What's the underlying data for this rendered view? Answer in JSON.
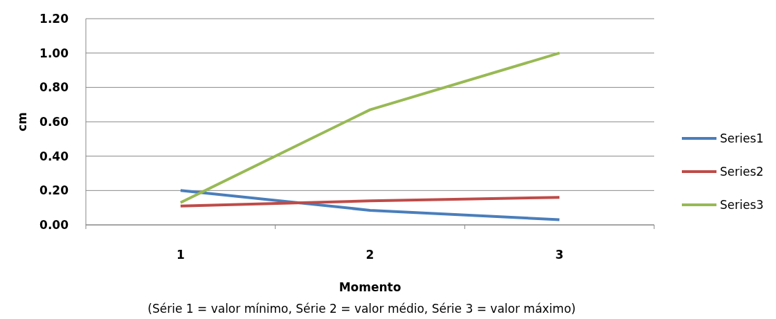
{
  "chart_data": {
    "type": "line",
    "xlabel": "Momento",
    "ylabel": "cm",
    "categories": [
      "1",
      "2",
      "3"
    ],
    "series": [
      {
        "name": "Series1",
        "color": "#4a7ebb",
        "values": [
          0.2,
          0.085,
          0.03
        ]
      },
      {
        "name": "Series2",
        "color": "#be4b48",
        "values": [
          0.11,
          0.14,
          0.16
        ]
      },
      {
        "name": "Series3",
        "color": "#98b954",
        "values": [
          0.13,
          0.67,
          1.0
        ]
      }
    ],
    "ylim": [
      0,
      1.2
    ],
    "yticks": [
      {
        "value": 0,
        "label": "0.00"
      },
      {
        "value": 0.2,
        "label": "0.20"
      },
      {
        "value": 0.4,
        "label": "0.40"
      },
      {
        "value": 0.6,
        "label": "0.60"
      },
      {
        "value": 0.8,
        "label": "0.80"
      },
      {
        "value": 1,
        "label": "1.00"
      },
      {
        "value": 1.2,
        "label": "1.20"
      }
    ],
    "grid": "y",
    "legend": "right",
    "marker": "none",
    "line_style": "solid",
    "annotations": [
      "(Série 1 = valor mínimo, Série 2 = valor médio, Série 3 = valor máximo)"
    ]
  }
}
